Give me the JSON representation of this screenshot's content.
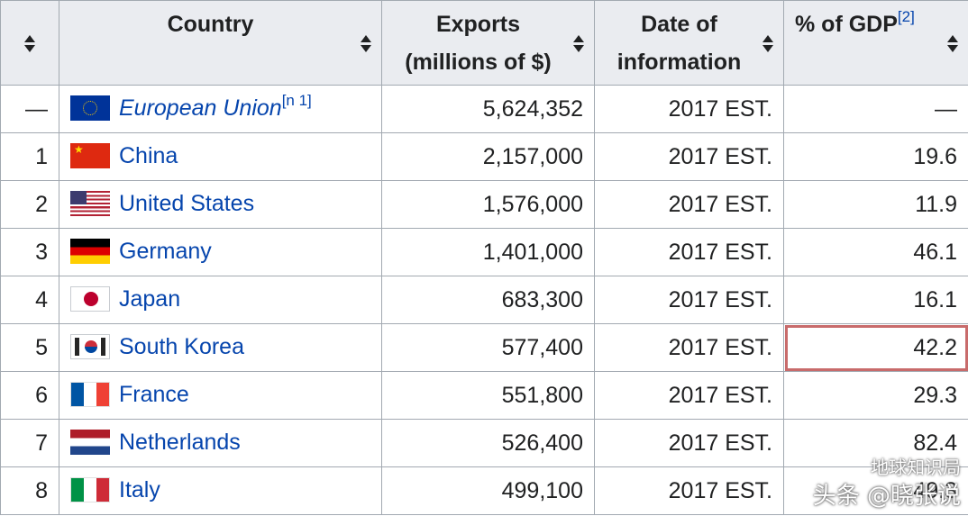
{
  "columns": {
    "country": "Country",
    "exports_line1": "Exports",
    "exports_line2": "(millions of $)",
    "date_line1": "Date of",
    "date_line2": "information",
    "gdp": "% of GDP",
    "gdp_ref": "[2]"
  },
  "rows": [
    {
      "rank": "—",
      "flag": "eu-flag",
      "country": "European Union",
      "note": "[n 1]",
      "exports": "5,624,352",
      "date": "2017 EST.",
      "gdp": "—"
    },
    {
      "rank": "1",
      "flag": "china-flag",
      "country": "China",
      "exports": "2,157,000",
      "date": "2017 EST.",
      "gdp": "19.6"
    },
    {
      "rank": "2",
      "flag": "usa-flag",
      "country": "United States",
      "exports": "1,576,000",
      "date": "2017 EST.",
      "gdp": "11.9"
    },
    {
      "rank": "3",
      "flag": "germany-flag",
      "country": "Germany",
      "exports": "1,401,000",
      "date": "2017 EST.",
      "gdp": "46.1"
    },
    {
      "rank": "4",
      "flag": "japan-flag",
      "country": "Japan",
      "exports": "683,300",
      "date": "2017 EST.",
      "gdp": "16.1"
    },
    {
      "rank": "5",
      "flag": "south-korea-flag",
      "country": "South Korea",
      "exports": "577,400",
      "date": "2017 EST.",
      "gdp": "42.2"
    },
    {
      "rank": "6",
      "flag": "france-flag",
      "country": "France",
      "exports": "551,800",
      "date": "2017 EST.",
      "gdp": "29.3"
    },
    {
      "rank": "7",
      "flag": "netherlands-flag",
      "country": "Netherlands",
      "exports": "526,400",
      "date": "2017 EST.",
      "gdp": "82.4"
    },
    {
      "rank": "8",
      "flag": "italy-flag",
      "country": "Italy",
      "exports": "499,100",
      "date": "2017 EST.",
      "gdp": "49.3"
    }
  ],
  "highlighted_cell": {
    "row": 5,
    "column": "% of GDP",
    "color": "#c86b6b"
  },
  "watermark": {
    "line1": "地球知识局",
    "line2": "头条 @晓张说"
  },
  "colors": {
    "header_bg": "#eaecf0",
    "border": "#a2a9b1",
    "link": "#0645ad",
    "text": "#202122"
  }
}
